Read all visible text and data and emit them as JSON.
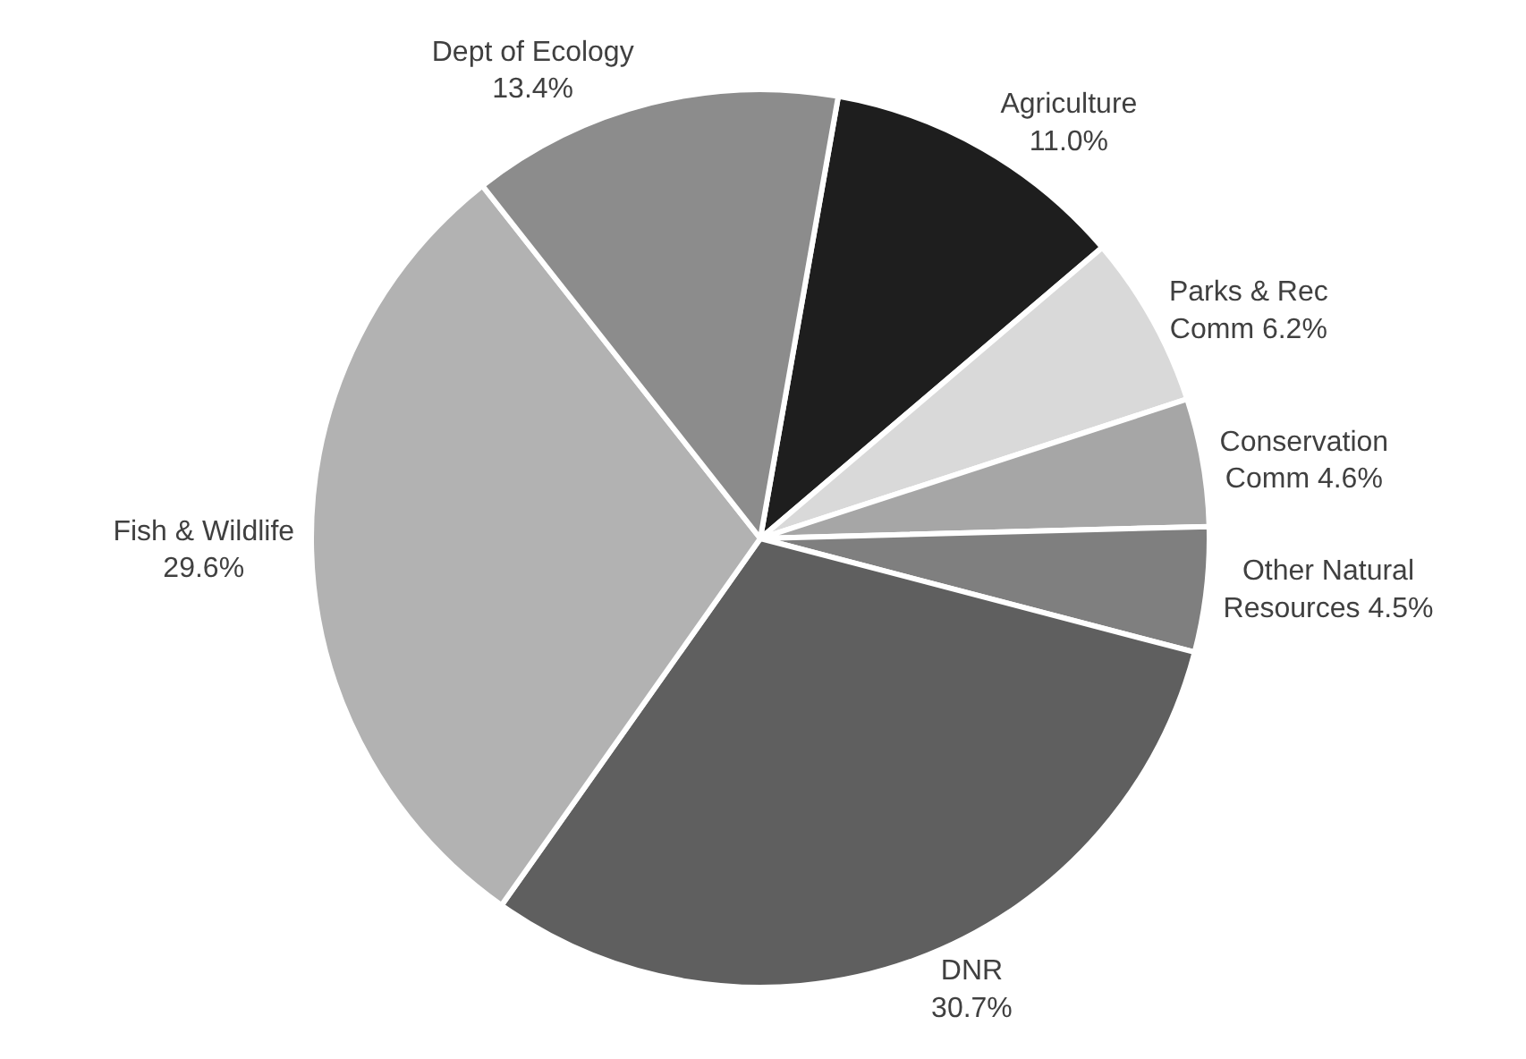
{
  "chart_data": {
    "type": "pie",
    "categories": [
      "Agriculture",
      "Parks & Rec\nComm",
      "Conservation\nComm",
      "Other Natural\nResources",
      "DNR",
      "Fish & Wildlife",
      "Dept of Ecology"
    ],
    "values": [
      11.0,
      6.2,
      4.6,
      4.5,
      30.7,
      29.6,
      13.4
    ],
    "value_labels": [
      "11.0%",
      "6.2%",
      "4.6%",
      "4.5%",
      "30.7%",
      "29.6%",
      "13.4%"
    ],
    "colors": [
      "#1e1e1e",
      "#d9d9d9",
      "#a6a6a6",
      "#7f7f7f",
      "#5f5f5f",
      "#b2b2b2",
      "#8c8c8c"
    ],
    "legend": false
  }
}
